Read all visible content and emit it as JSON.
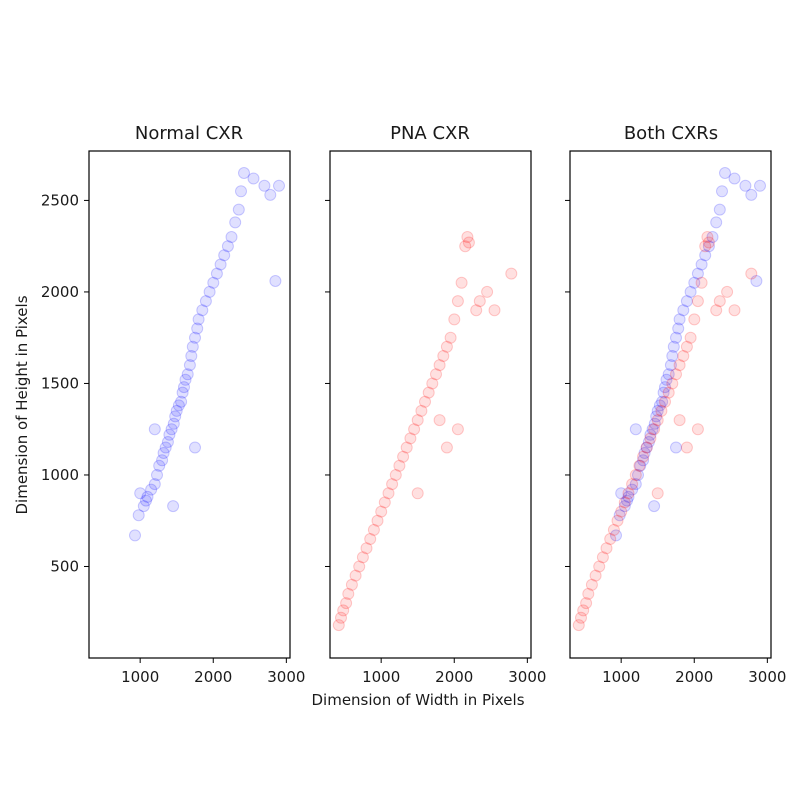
{
  "figure": {
    "xlabel": "Dimension of Width in Pixels",
    "ylabel": "Dimension of Height in Pixels"
  },
  "chart_data": [
    {
      "type": "scatter",
      "title": "Normal CXR",
      "color": "#0000ff",
      "alpha": 0.12,
      "xlim": [
        300,
        3050
      ],
      "ylim": [
        0,
        2770
      ],
      "xticks": [
        "1000",
        "2000",
        "3000"
      ],
      "yticks": [
        "500",
        "1000",
        "1500",
        "2000",
        "2500"
      ],
      "points": [
        [
          930,
          670
        ],
        [
          980,
          780
        ],
        [
          1050,
          830
        ],
        [
          1080,
          860
        ],
        [
          1100,
          880
        ],
        [
          1150,
          920
        ],
        [
          1200,
          950
        ],
        [
          1230,
          1000
        ],
        [
          1260,
          1050
        ],
        [
          1300,
          1080
        ],
        [
          1320,
          1120
        ],
        [
          1350,
          1150
        ],
        [
          1380,
          1180
        ],
        [
          1400,
          1220
        ],
        [
          1430,
          1250
        ],
        [
          1460,
          1280
        ],
        [
          1480,
          1320
        ],
        [
          1500,
          1350
        ],
        [
          1530,
          1380
        ],
        [
          1560,
          1400
        ],
        [
          1580,
          1450
        ],
        [
          1600,
          1480
        ],
        [
          1620,
          1520
        ],
        [
          1650,
          1550
        ],
        [
          1680,
          1600
        ],
        [
          1700,
          1650
        ],
        [
          1720,
          1700
        ],
        [
          1750,
          1750
        ],
        [
          1780,
          1800
        ],
        [
          1800,
          1850
        ],
        [
          1850,
          1900
        ],
        [
          1900,
          1950
        ],
        [
          1950,
          2000
        ],
        [
          2000,
          2050
        ],
        [
          2050,
          2100
        ],
        [
          2100,
          2150
        ],
        [
          2150,
          2200
        ],
        [
          2200,
          2250
        ],
        [
          2250,
          2300
        ],
        [
          2300,
          2380
        ],
        [
          2350,
          2450
        ],
        [
          2380,
          2550
        ],
        [
          2420,
          2650
        ],
        [
          2550,
          2620
        ],
        [
          2700,
          2580
        ],
        [
          2780,
          2530
        ],
        [
          2850,
          2060
        ],
        [
          2900,
          2580
        ],
        [
          1450,
          830
        ],
        [
          1750,
          1150
        ],
        [
          1200,
          1250
        ],
        [
          1000,
          900
        ]
      ]
    },
    {
      "type": "scatter",
      "title": "PNA CXR",
      "color": "#ff0000",
      "alpha": 0.12,
      "xlim": [
        300,
        3050
      ],
      "ylim": [
        0,
        2770
      ],
      "xticks": [
        "1000",
        "2000",
        "3000"
      ],
      "yticks": [
        "500",
        "1000",
        "1500",
        "2000",
        "2500"
      ],
      "points": [
        [
          420,
          180
        ],
        [
          450,
          220
        ],
        [
          480,
          260
        ],
        [
          520,
          300
        ],
        [
          550,
          350
        ],
        [
          600,
          400
        ],
        [
          650,
          450
        ],
        [
          700,
          500
        ],
        [
          750,
          550
        ],
        [
          800,
          600
        ],
        [
          850,
          650
        ],
        [
          900,
          700
        ],
        [
          950,
          750
        ],
        [
          1000,
          800
        ],
        [
          1050,
          850
        ],
        [
          1100,
          900
        ],
        [
          1150,
          950
        ],
        [
          1200,
          1000
        ],
        [
          1250,
          1050
        ],
        [
          1300,
          1100
        ],
        [
          1350,
          1150
        ],
        [
          1400,
          1200
        ],
        [
          1450,
          1250
        ],
        [
          1500,
          1300
        ],
        [
          1550,
          1350
        ],
        [
          1600,
          1400
        ],
        [
          1650,
          1450
        ],
        [
          1700,
          1500
        ],
        [
          1750,
          1550
        ],
        [
          1800,
          1600
        ],
        [
          1850,
          1650
        ],
        [
          1900,
          1700
        ],
        [
          1950,
          1750
        ],
        [
          2000,
          1850
        ],
        [
          2050,
          1950
        ],
        [
          2100,
          2050
        ],
        [
          2150,
          2250
        ],
        [
          2180,
          2300
        ],
        [
          2200,
          2270
        ],
        [
          2300,
          1900
        ],
        [
          2350,
          1950
        ],
        [
          2450,
          2000
        ],
        [
          2550,
          1900
        ],
        [
          2780,
          2100
        ],
        [
          1900,
          1150
        ],
        [
          2050,
          1250
        ],
        [
          1800,
          1300
        ],
        [
          1500,
          900
        ]
      ]
    },
    {
      "type": "scatter",
      "title": "Both CXRs",
      "xlim": [
        300,
        3050
      ],
      "ylim": [
        0,
        2770
      ],
      "xticks": [
        "1000",
        "2000",
        "3000"
      ],
      "yticks": [
        "500",
        "1000",
        "1500",
        "2000",
        "2500"
      ],
      "series": [
        {
          "color": "#0000ff",
          "alpha": 0.12,
          "points_from": 0
        },
        {
          "color": "#ff0000",
          "alpha": 0.12,
          "points_from": 1
        }
      ]
    }
  ]
}
